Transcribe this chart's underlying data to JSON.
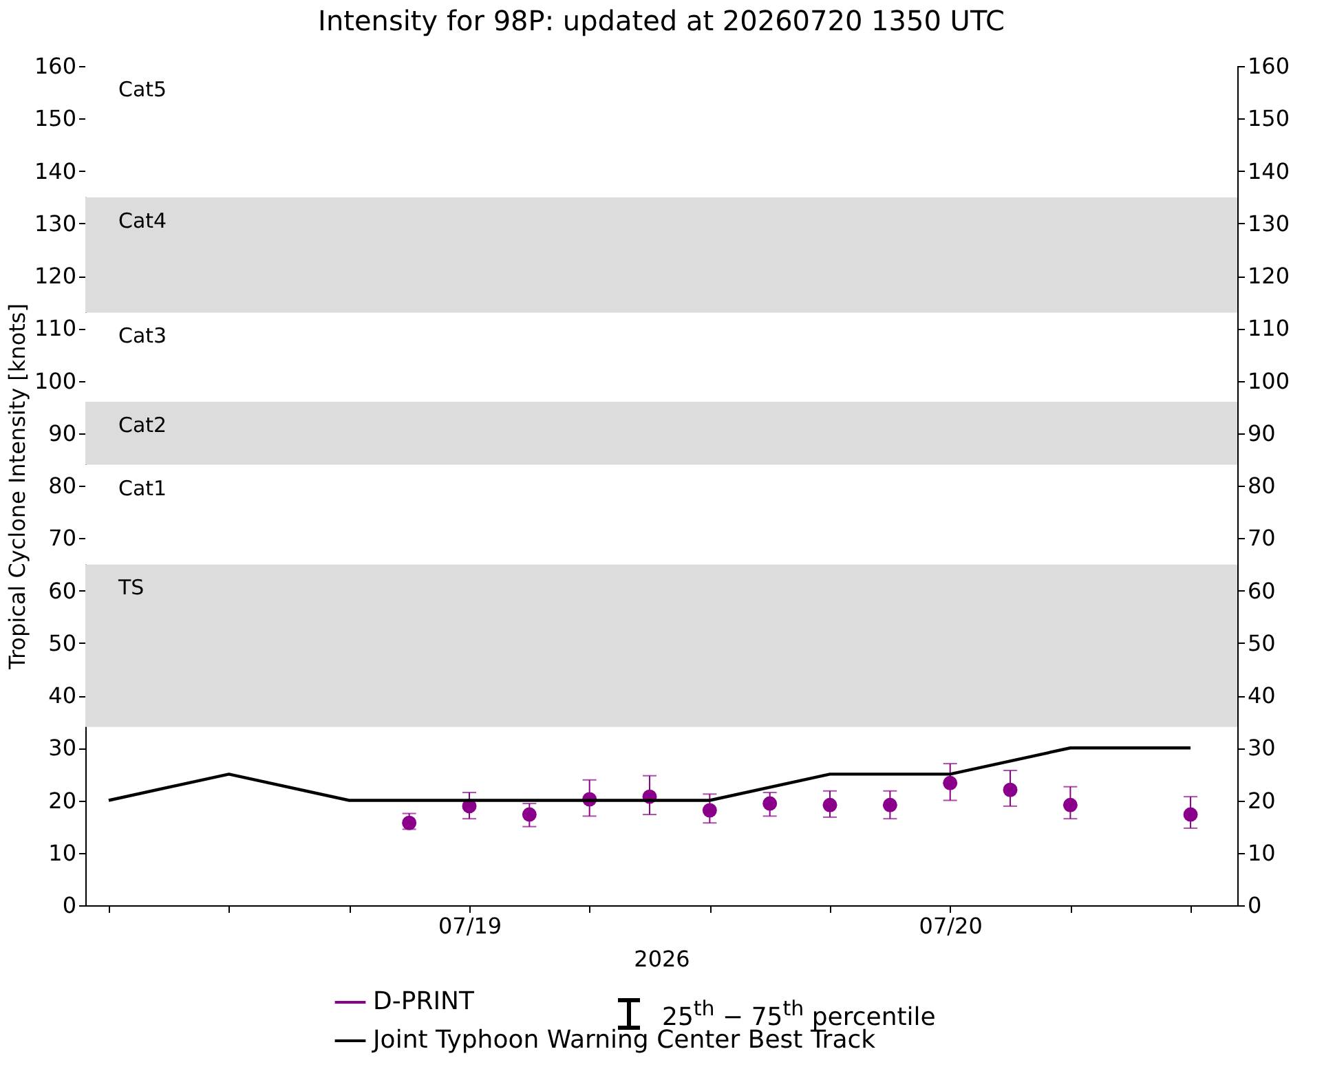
{
  "chart_data": {
    "type": "line",
    "title": "Intensity for 98P: updated at 20260720 1350 UTC",
    "xlabel": "2026",
    "ylabel": "Tropical Cyclone Intensity [knots]",
    "xlim": [
      "2026-07-18T04:50",
      "2026-07-20T14:20"
    ],
    "xticks": [
      {
        "value": "2026-07-18T06:00",
        "label": null
      },
      {
        "value": "2026-07-18T12:00",
        "label": null
      },
      {
        "value": "2026-07-18T18:00",
        "label": null
      },
      {
        "value": "2026-07-19T00:00",
        "label": "07/19"
      },
      {
        "value": "2026-07-19T06:00",
        "label": null
      },
      {
        "value": "2026-07-19T12:00",
        "label": null
      },
      {
        "value": "2026-07-19T18:00",
        "label": null
      },
      {
        "value": "2026-07-20T00:00",
        "label": "07/20"
      },
      {
        "value": "2026-07-20T06:00",
        "label": null
      },
      {
        "value": "2026-07-20T12:00",
        "label": null
      }
    ],
    "ylim": [
      0,
      160
    ],
    "yticks": [
      0,
      10,
      20,
      30,
      40,
      50,
      60,
      70,
      80,
      90,
      100,
      110,
      120,
      130,
      140,
      150,
      160
    ],
    "y2lim": [
      0,
      160
    ],
    "y2ticks": [
      0,
      10,
      20,
      30,
      40,
      50,
      60,
      70,
      80,
      90,
      100,
      110,
      120,
      130,
      140,
      150,
      160
    ],
    "grid": false,
    "legend": "bottom",
    "bands": [
      {
        "axis": "y",
        "from": 34,
        "to": 65,
        "label": "TS",
        "color": "#dcdcdc"
      },
      {
        "axis": "y",
        "from": 65,
        "to": 84,
        "label": "Cat1",
        "color": "#ffffff"
      },
      {
        "axis": "y",
        "from": 84,
        "to": 96,
        "label": "Cat2",
        "color": "#dcdcdc"
      },
      {
        "axis": "y",
        "from": 96,
        "to": 113,
        "label": "Cat3",
        "color": "#ffffff"
      },
      {
        "axis": "y",
        "from": 113,
        "to": 135,
        "label": "Cat4",
        "color": "#dcdcdc"
      },
      {
        "axis": "y",
        "from": 135,
        "to": 160,
        "label": "Cat5",
        "color": "#ffffff"
      }
    ],
    "annotations": [
      "25$^{th}$ − 75$^{th}$ percentile"
    ],
    "series": [
      {
        "name": "D-PRINT",
        "type": "scatter",
        "marker": "circle",
        "color": "#8b008b",
        "x": [
          "2026-07-18T21:00",
          "2026-07-19T00:00",
          "2026-07-19T03:00",
          "2026-07-19T06:00",
          "2026-07-19T09:00",
          "2026-07-19T12:00",
          "2026-07-19T15:00",
          "2026-07-19T18:00",
          "2026-07-19T21:00",
          "2026-07-20T00:00",
          "2026-07-20T03:00",
          "2026-07-20T06:00",
          "2026-07-20T12:00"
        ],
        "values": [
          15.7,
          18.9,
          17.3,
          20.2,
          20.7,
          18.1,
          19.4,
          19.1,
          19.1,
          23.3,
          22.0,
          19.1,
          17.3
        ],
        "errors": [
          [
            14.5,
            17.5
          ],
          [
            16.5,
            21.5
          ],
          [
            15.0,
            19.4
          ],
          [
            17.0,
            23.9
          ],
          [
            17.3,
            24.7
          ],
          [
            15.7,
            21.2
          ],
          [
            17.0,
            21.5
          ],
          [
            16.8,
            21.8
          ],
          [
            16.5,
            21.8
          ],
          [
            20.0,
            27.0
          ],
          [
            18.9,
            25.7
          ],
          [
            16.5,
            22.6
          ],
          [
            14.7,
            20.7
          ]
        ]
      },
      {
        "name": "Joint Typhoon Warning Center Best Track",
        "type": "line",
        "color": "#000000",
        "x": [
          "2026-07-18T06:00",
          "2026-07-18T12:00",
          "2026-07-18T18:00",
          "2026-07-19T00:00",
          "2026-07-19T06:00",
          "2026-07-19T12:00",
          "2026-07-19T18:00",
          "2026-07-20T00:00",
          "2026-07-20T06:00",
          "2026-07-20T12:00"
        ],
        "values": [
          20,
          25,
          20,
          20,
          20,
          20,
          25,
          25,
          30,
          30
        ]
      }
    ]
  }
}
